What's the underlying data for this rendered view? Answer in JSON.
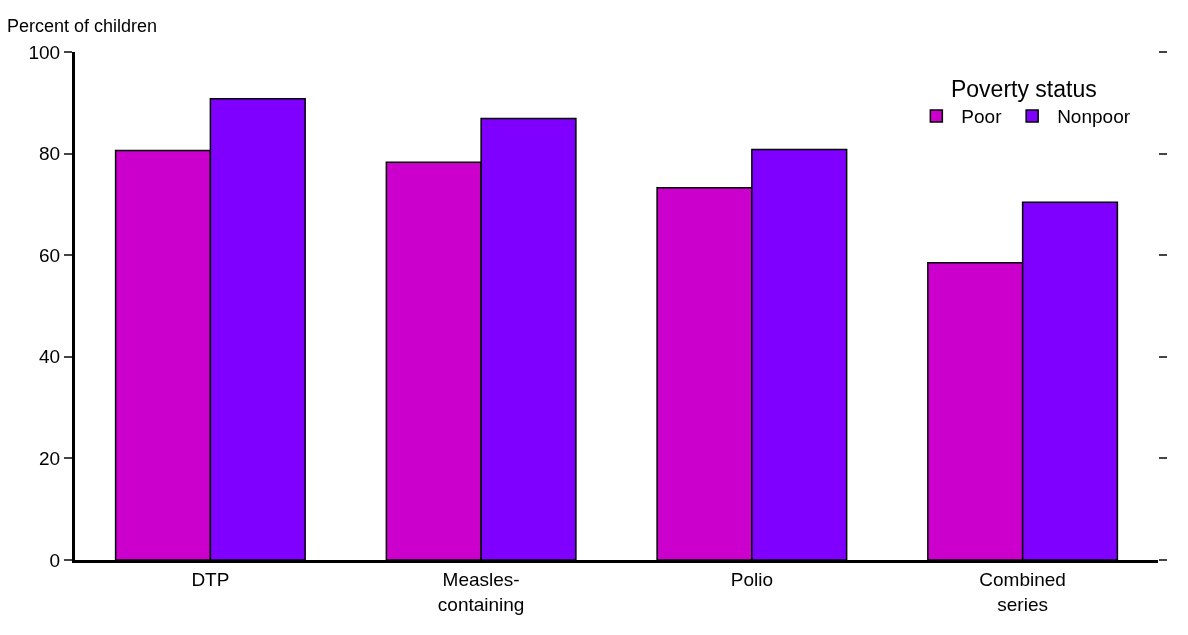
{
  "chart_data": {
    "type": "bar",
    "ylabel": "Percent of children",
    "categories": [
      "DTP",
      "Measles-\ncontaining",
      "Polio",
      "Combined\nseries"
    ],
    "series": [
      {
        "name": "Poor",
        "color": "#cc00cc",
        "values": [
          80.6,
          78.3,
          73.3,
          58.5
        ]
      },
      {
        "name": "Nonpoor",
        "color": "#8000ff",
        "values": [
          90.8,
          86.9,
          80.8,
          70.4
        ]
      }
    ],
    "legend_title": "Poverty status",
    "legend": "top right",
    "ylim": [
      0,
      100
    ],
    "yticks": [
      0,
      20,
      40,
      60,
      80,
      100
    ]
  }
}
